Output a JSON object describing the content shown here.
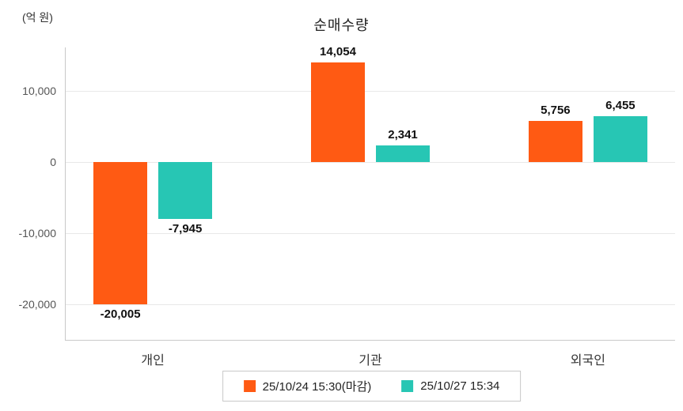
{
  "title": "순매수량",
  "unit_label": "(억 원)",
  "colors": {
    "series_prev": "#ff5a13",
    "series_curr": "#27c6b4",
    "gridline": "#e8e8e8",
    "axis": "#c9c9c9"
  },
  "legend": [
    {
      "label": "25/10/24 15:30(마감)",
      "color": "#ff5a13"
    },
    {
      "label": "25/10/27 15:34",
      "color": "#27c6b4"
    }
  ],
  "chart_data": {
    "type": "bar",
    "title": "순매수량",
    "ylabel": "(억 원)",
    "xlabel": "",
    "categories": [
      "개인",
      "기관",
      "외국인"
    ],
    "series": [
      {
        "name": "25/10/24 15:30(마감)",
        "color": "#ff5a13",
        "values": [
          -20005,
          14054,
          5756
        ]
      },
      {
        "name": "25/10/27 15:34",
        "color": "#27c6b4",
        "values": [
          -7945,
          2341,
          6455
        ]
      }
    ],
    "value_labels": [
      [
        "-20,005",
        "14,054",
        "5,756"
      ],
      [
        "-7,945",
        "2,341",
        "6,455"
      ]
    ],
    "yticks": [
      10000,
      0,
      -10000,
      -20000
    ],
    "ytick_labels": [
      "10,000",
      "0",
      "-10,000",
      "-20,000"
    ],
    "ylim": [
      -25000,
      16100
    ],
    "grid": true,
    "legend_position": "bottom"
  }
}
